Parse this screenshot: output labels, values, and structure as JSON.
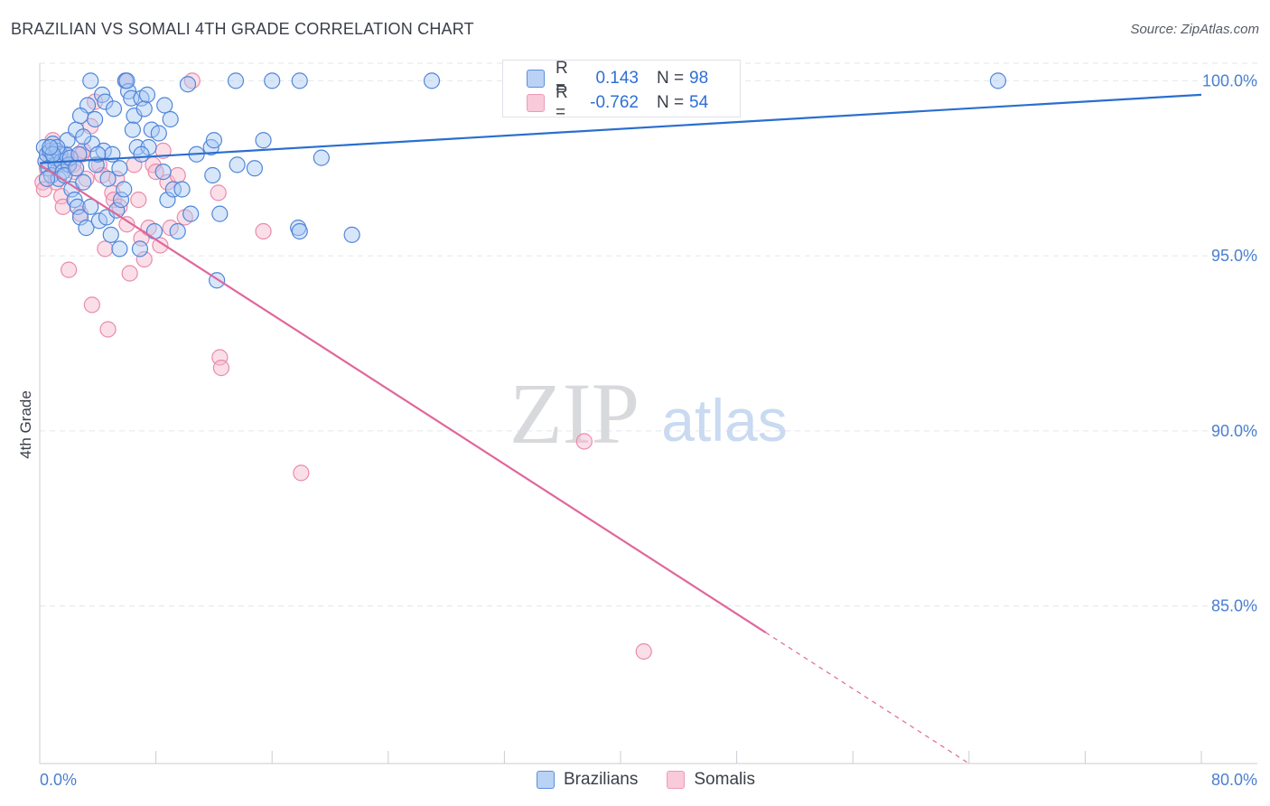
{
  "title": "BRAZILIAN VS SOMALI 4TH GRADE CORRELATION CHART",
  "source": "Source: ZipAtlas.com",
  "watermark": {
    "zip": "ZIP",
    "atlas": "atlas"
  },
  "colors": {
    "blue_fill": "#a9c8f3",
    "blue_stroke": "#4f86d9",
    "blue_line": "#2a6fce",
    "pink_fill": "#f6b9cd",
    "pink_stroke": "#e98aab",
    "pink_line": "#e0679a",
    "grid": "#e3e6ec",
    "axis_text": "#4a7fd0"
  },
  "legend": {
    "rows": [
      {
        "r_label": "R =",
        "r_value": "0.143",
        "n_label": "N =",
        "n_value": "98"
      },
      {
        "r_label": "R =",
        "r_value": "-0.762",
        "n_label": "N =",
        "n_value": "54"
      }
    ]
  },
  "bottom_legend": [
    "Brazilians",
    "Somalis"
  ],
  "chart_data": {
    "type": "scatter",
    "title": "BRAZILIAN VS SOMALI 4TH GRADE CORRELATION CHART",
    "xlabel": "",
    "ylabel": "4th Grade",
    "xlim": [
      0,
      80
    ],
    "ylim": [
      80.5,
      100.5
    ],
    "x_tick_labels": [
      "0.0%",
      "80.0%"
    ],
    "y_ticks": [
      85,
      90,
      95,
      100
    ],
    "y_tick_labels": [
      "85.0%",
      "90.0%",
      "95.0%",
      "100.0%"
    ],
    "series": [
      {
        "name": "Brazilians",
        "r": 0.143,
        "n": 98,
        "trend": {
          "x0": 0,
          "y0": 97.65,
          "x1": 80,
          "y1": 99.6,
          "dashed_from_x": null
        },
        "points": [
          [
            0.3,
            98.1
          ],
          [
            0.4,
            97.7
          ],
          [
            0.5,
            97.9
          ],
          [
            0.6,
            97.5
          ],
          [
            0.7,
            98.0
          ],
          [
            0.8,
            97.3
          ],
          [
            0.9,
            98.2
          ],
          [
            1.0,
            97.8
          ],
          [
            1.1,
            97.6
          ],
          [
            1.2,
            98.0
          ],
          [
            1.3,
            97.2
          ],
          [
            1.4,
            97.9
          ],
          [
            1.5,
            97.7
          ],
          [
            1.6,
            97.4
          ],
          [
            1.8,
            97.9
          ],
          [
            1.9,
            98.3
          ],
          [
            2.0,
            97.6
          ],
          [
            2.1,
            97.8
          ],
          [
            2.2,
            96.9
          ],
          [
            2.4,
            96.6
          ],
          [
            2.5,
            98.6
          ],
          [
            2.6,
            96.4
          ],
          [
            2.7,
            97.9
          ],
          [
            2.8,
            96.1
          ],
          [
            3.0,
            97.1
          ],
          [
            3.2,
            95.8
          ],
          [
            3.3,
            99.3
          ],
          [
            3.5,
            96.4
          ],
          [
            3.6,
            98.2
          ],
          [
            3.8,
            98.9
          ],
          [
            3.9,
            97.6
          ],
          [
            4.1,
            96.0
          ],
          [
            4.3,
            99.6
          ],
          [
            4.4,
            98.0
          ],
          [
            4.5,
            99.4
          ],
          [
            4.6,
            96.1
          ],
          [
            4.7,
            97.2
          ],
          [
            4.9,
            95.6
          ],
          [
            5.0,
            97.9
          ],
          [
            5.1,
            99.2
          ],
          [
            5.3,
            96.3
          ],
          [
            5.5,
            97.5
          ],
          [
            5.6,
            96.6
          ],
          [
            5.8,
            96.9
          ],
          [
            5.9,
            100.0
          ],
          [
            6.1,
            99.7
          ],
          [
            6.3,
            99.5
          ],
          [
            6.5,
            99.0
          ],
          [
            6.7,
            98.1
          ],
          [
            6.9,
            95.2
          ],
          [
            7.0,
            99.5
          ],
          [
            7.2,
            99.2
          ],
          [
            7.4,
            99.6
          ],
          [
            7.5,
            98.1
          ],
          [
            7.7,
            98.6
          ],
          [
            7.9,
            95.7
          ],
          [
            8.2,
            98.5
          ],
          [
            8.6,
            99.3
          ],
          [
            8.8,
            96.6
          ],
          [
            9.0,
            98.9
          ],
          [
            9.2,
            96.9
          ],
          [
            9.5,
            95.7
          ],
          [
            9.8,
            96.9
          ],
          [
            10.2,
            99.9
          ],
          [
            10.4,
            96.2
          ],
          [
            10.8,
            97.9
          ],
          [
            11.8,
            98.1
          ],
          [
            11.9,
            97.3
          ],
          [
            12.0,
            98.3
          ],
          [
            12.2,
            94.3
          ],
          [
            12.4,
            96.2
          ],
          [
            13.5,
            100.0
          ],
          [
            13.6,
            97.6
          ],
          [
            14.8,
            97.5
          ],
          [
            15.4,
            98.3
          ],
          [
            16.0,
            100.0
          ],
          [
            17.9,
            100.0
          ],
          [
            17.8,
            95.8
          ],
          [
            17.9,
            95.7
          ],
          [
            19.4,
            97.8
          ],
          [
            21.5,
            95.6
          ],
          [
            27.0,
            100.0
          ],
          [
            66.0,
            100.0
          ],
          [
            3.5,
            100.0
          ],
          [
            6.0,
            100.0
          ],
          [
            5.5,
            95.2
          ],
          [
            2.8,
            99.0
          ],
          [
            1.7,
            97.3
          ],
          [
            0.5,
            97.2
          ],
          [
            3.0,
            98.4
          ],
          [
            4.0,
            97.9
          ],
          [
            1.2,
            98.1
          ],
          [
            7.0,
            97.9
          ],
          [
            2.5,
            97.5
          ],
          [
            6.4,
            98.6
          ],
          [
            0.9,
            97.9
          ],
          [
            8.5,
            97.4
          ],
          [
            0.7,
            98.1
          ]
        ]
      },
      {
        "name": "Somalis",
        "r": -0.762,
        "n": 54,
        "trend": {
          "x0": 0,
          "y0": 97.6,
          "x1": 64,
          "y1": 80.5,
          "dashed_from_x": 50
        },
        "points": [
          [
            0.2,
            97.1
          ],
          [
            0.3,
            96.9
          ],
          [
            0.5,
            97.5
          ],
          [
            0.7,
            97.9
          ],
          [
            0.9,
            98.3
          ],
          [
            1.1,
            97.1
          ],
          [
            1.3,
            97.6
          ],
          [
            1.5,
            96.7
          ],
          [
            1.6,
            96.4
          ],
          [
            1.8,
            97.9
          ],
          [
            2.0,
            97.6
          ],
          [
            2.0,
            94.6
          ],
          [
            2.3,
            97.6
          ],
          [
            2.4,
            97.4
          ],
          [
            2.8,
            96.2
          ],
          [
            2.9,
            97.9
          ],
          [
            3.2,
            97.2
          ],
          [
            3.5,
            98.7
          ],
          [
            3.6,
            93.6
          ],
          [
            3.8,
            99.4
          ],
          [
            4.1,
            97.6
          ],
          [
            4.3,
            97.3
          ],
          [
            4.5,
            95.2
          ],
          [
            4.7,
            92.9
          ],
          [
            5.0,
            96.8
          ],
          [
            5.1,
            96.6
          ],
          [
            5.3,
            97.2
          ],
          [
            5.5,
            96.4
          ],
          [
            5.9,
            100.0
          ],
          [
            6.0,
            95.9
          ],
          [
            6.2,
            94.5
          ],
          [
            6.5,
            97.6
          ],
          [
            7.0,
            95.5
          ],
          [
            7.2,
            94.9
          ],
          [
            7.5,
            95.8
          ],
          [
            7.8,
            97.6
          ],
          [
            8.0,
            97.4
          ],
          [
            8.3,
            95.3
          ],
          [
            8.5,
            98.0
          ],
          [
            8.8,
            97.1
          ],
          [
            9.0,
            95.8
          ],
          [
            10.0,
            96.1
          ],
          [
            10.5,
            100.0
          ],
          [
            12.3,
            96.8
          ],
          [
            12.4,
            92.1
          ],
          [
            12.5,
            91.8
          ],
          [
            15.4,
            95.7
          ],
          [
            18.0,
            88.8
          ],
          [
            37.5,
            89.7
          ],
          [
            41.6,
            83.7
          ],
          [
            3.0,
            98.0
          ],
          [
            1.8,
            97.7
          ],
          [
            6.8,
            96.6
          ],
          [
            9.5,
            97.3
          ]
        ]
      }
    ]
  }
}
